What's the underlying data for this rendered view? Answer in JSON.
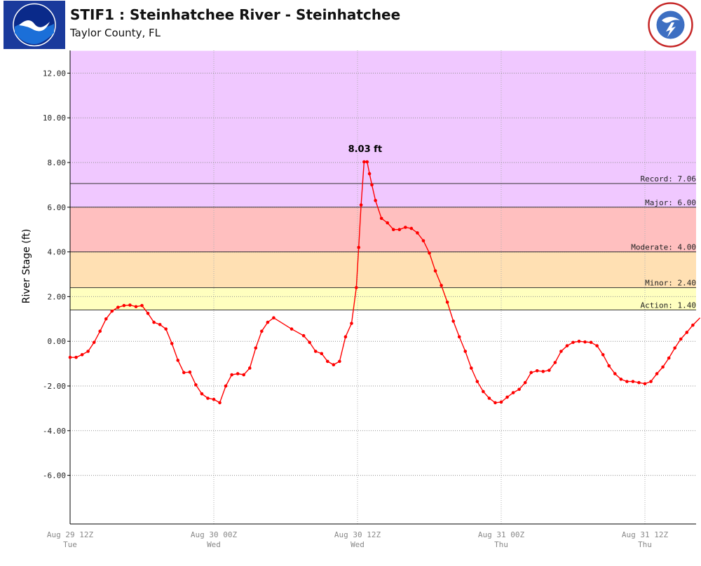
{
  "header": {
    "title": "STIF1 : Steinhatchee River - Steinhatchee",
    "subtitle": "Taylor County, FL",
    "left_logo_text": "NOAA",
    "right_logo_text": "NATIONAL WEATHER SERVICE"
  },
  "chart_data": {
    "type": "line",
    "ylabel": "River Stage (ft)",
    "ylim": [
      -8.0,
      13.0
    ],
    "y_ticks": [
      12.0,
      10.0,
      8.0,
      6.0,
      4.0,
      2.0,
      0.0,
      -2.0,
      -4.0,
      -6.0
    ],
    "y_tick_labels": [
      "12.00",
      "10.00",
      "8.00",
      "6.00",
      "4.00",
      "2.00",
      "0.00",
      "-2.00",
      "-4.00",
      "-6.00"
    ],
    "x_ticks": [
      {
        "hours": 0,
        "label": "Aug 29 12Z",
        "day": "Tue"
      },
      {
        "hours": 12,
        "label": "Aug 30 00Z",
        "day": "Wed"
      },
      {
        "hours": 24,
        "label": "Aug 30 12Z",
        "day": "Wed"
      },
      {
        "hours": 36,
        "label": "Aug 31 00Z",
        "day": "Thu"
      },
      {
        "hours": 48,
        "label": "Aug 31 12Z",
        "day": "Thu"
      }
    ],
    "x_range_hours": [
      0,
      52.6
    ],
    "x_unit": "hours since Aug 29 12Z",
    "flood_categories": [
      {
        "label": "Action: 1.40",
        "value": 1.4
      },
      {
        "label": "Minor: 2.40",
        "value": 2.4
      },
      {
        "label": "Moderate: 4.00",
        "value": 4.0
      },
      {
        "label": "Major: 6.00",
        "value": 6.0
      },
      {
        "label": "Record: 7.06",
        "value": 7.06
      }
    ],
    "zones": [
      {
        "from": 1.4,
        "to": 2.4,
        "color": "#ffffbf"
      },
      {
        "from": 2.4,
        "to": 4.0,
        "color": "#ffe0b3"
      },
      {
        "from": 4.0,
        "to": 6.0,
        "color": "#ffbfbf"
      },
      {
        "from": 6.0,
        "to": 13.0,
        "color": "#f0c8ff"
      }
    ],
    "peak_annotation": {
      "label": "8.03 ft",
      "x": 24.4,
      "y": 8.03
    },
    "series": [
      {
        "color": "#ff0000",
        "points": [
          [
            0.0,
            -0.72
          ],
          [
            0.5,
            -0.72
          ],
          [
            1.0,
            -0.6
          ],
          [
            1.5,
            -0.45
          ],
          [
            2.0,
            -0.05
          ],
          [
            2.5,
            0.45
          ],
          [
            3.0,
            1.0
          ],
          [
            3.5,
            1.35
          ],
          [
            4.0,
            1.52
          ],
          [
            4.5,
            1.6
          ],
          [
            5.0,
            1.62
          ],
          [
            5.5,
            1.55
          ],
          [
            6.0,
            1.6
          ],
          [
            6.5,
            1.25
          ],
          [
            7.0,
            0.85
          ],
          [
            7.5,
            0.75
          ],
          [
            8.0,
            0.55
          ],
          [
            8.5,
            -0.1
          ],
          [
            9.0,
            -0.85
          ],
          [
            9.5,
            -1.4
          ],
          [
            10.0,
            -1.38
          ],
          [
            10.5,
            -1.95
          ],
          [
            11.0,
            -2.35
          ],
          [
            11.5,
            -2.55
          ],
          [
            12.0,
            -2.6
          ],
          [
            12.5,
            -2.75
          ],
          [
            13.0,
            -2.0
          ],
          [
            13.5,
            -1.5
          ],
          [
            14.0,
            -1.45
          ],
          [
            14.5,
            -1.5
          ],
          [
            15.0,
            -1.2
          ],
          [
            15.5,
            -0.3
          ],
          [
            16.0,
            0.45
          ],
          [
            16.5,
            0.85
          ],
          [
            17.0,
            1.05
          ],
          [
            18.5,
            0.55
          ],
          [
            19.5,
            0.25
          ],
          [
            20.0,
            -0.05
          ],
          [
            20.5,
            -0.45
          ],
          [
            21.0,
            -0.55
          ],
          [
            21.5,
            -0.9
          ],
          [
            22.0,
            -1.05
          ],
          [
            22.5,
            -0.9
          ],
          [
            23.0,
            0.2
          ],
          [
            23.5,
            0.8
          ],
          [
            23.9,
            2.4
          ],
          [
            24.1,
            4.2
          ],
          [
            24.3,
            6.1
          ],
          [
            24.55,
            8.03
          ],
          [
            24.8,
            8.03
          ],
          [
            25.0,
            7.5
          ],
          [
            25.2,
            7.0
          ],
          [
            25.5,
            6.3
          ],
          [
            26.0,
            5.5
          ],
          [
            26.5,
            5.3
          ],
          [
            27.0,
            5.0
          ],
          [
            27.5,
            5.0
          ],
          [
            28.0,
            5.1
          ],
          [
            28.5,
            5.05
          ],
          [
            29.0,
            4.85
          ],
          [
            29.5,
            4.5
          ],
          [
            30.0,
            3.95
          ],
          [
            30.5,
            3.15
          ],
          [
            31.0,
            2.5
          ],
          [
            31.5,
            1.75
          ],
          [
            32.0,
            0.9
          ],
          [
            32.5,
            0.2
          ],
          [
            33.0,
            -0.45
          ],
          [
            33.5,
            -1.2
          ],
          [
            34.0,
            -1.8
          ],
          [
            34.5,
            -2.25
          ],
          [
            35.0,
            -2.55
          ],
          [
            35.5,
            -2.75
          ],
          [
            36.0,
            -2.72
          ],
          [
            36.5,
            -2.5
          ],
          [
            37.0,
            -2.3
          ],
          [
            37.5,
            -2.15
          ],
          [
            38.0,
            -1.85
          ],
          [
            38.5,
            -1.4
          ],
          [
            39.0,
            -1.32
          ],
          [
            39.5,
            -1.35
          ],
          [
            40.0,
            -1.3
          ],
          [
            40.5,
            -0.95
          ],
          [
            41.0,
            -0.45
          ],
          [
            41.5,
            -0.2
          ],
          [
            42.0,
            -0.05
          ],
          [
            42.5,
            0.0
          ],
          [
            43.0,
            -0.03
          ],
          [
            43.5,
            -0.05
          ],
          [
            44.0,
            -0.2
          ],
          [
            44.5,
            -0.6
          ],
          [
            45.0,
            -1.1
          ],
          [
            45.5,
            -1.45
          ],
          [
            46.0,
            -1.7
          ],
          [
            46.5,
            -1.8
          ],
          [
            47.0,
            -1.8
          ],
          [
            47.5,
            -1.85
          ],
          [
            48.0,
            -1.9
          ],
          [
            48.5,
            -1.8
          ],
          [
            49.0,
            -1.45
          ],
          [
            49.5,
            -1.15
          ],
          [
            50.0,
            -0.75
          ],
          [
            50.5,
            -0.3
          ],
          [
            51.0,
            0.1
          ],
          [
            51.5,
            0.4
          ],
          [
            52.0,
            0.72
          ],
          [
            52.6,
            1.05
          ]
        ]
      }
    ],
    "grid": true
  }
}
